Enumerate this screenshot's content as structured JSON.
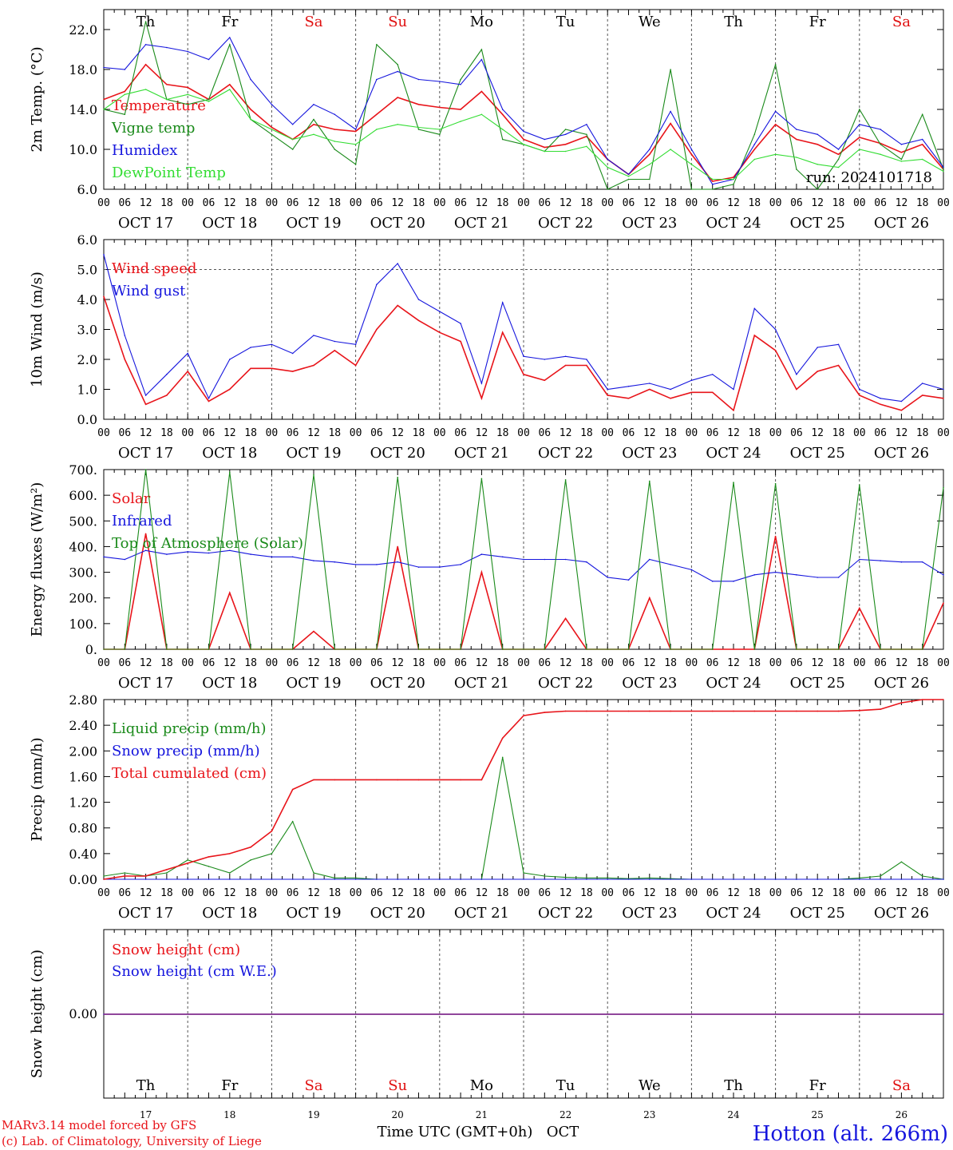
{
  "station_title": "Hotton (alt. 266m)",
  "credits": [
    "MARv3.14 model forced by GFS",
    "(c) Lab. of Climatology, University of Liege"
  ],
  "run_label": "run: 2024101718",
  "x_axis_title": "Time UTC (GMT+0h)",
  "x_axis_month": "OCT",
  "hour_labels": [
    "00",
    "06",
    "12",
    "18"
  ],
  "dates": [
    "OCT 17",
    "OCT 18",
    "OCT 19",
    "OCT 20",
    "OCT 21",
    "OCT 22",
    "OCT 23",
    "OCT 24",
    "OCT 25",
    "OCT 26"
  ],
  "day_numbers": [
    "17",
    "18",
    "19",
    "20",
    "21",
    "22",
    "23",
    "24",
    "25",
    "26"
  ],
  "weekdays": [
    "Th",
    "Fr",
    "Sa",
    "Su",
    "Mo",
    "Tu",
    "We",
    "Th",
    "Fr",
    "Sa"
  ],
  "weekday_colors": [
    "#000000",
    "#000000",
    "#e01010",
    "#e01010",
    "#000000",
    "#000000",
    "#000000",
    "#000000",
    "#000000",
    "#e01010"
  ],
  "colors": {
    "red": "#e8141a",
    "green": "#1a8a1a",
    "blue": "#1515dd",
    "lightgreen": "#33dd33",
    "purple": "#7030a0"
  },
  "chart_data": [
    {
      "type": "line",
      "ylabel": "2m Temp. (°C)",
      "ylim": [
        6.0,
        24.0
      ],
      "yticks": [
        "6.0",
        "10.0",
        "14.0",
        "18.0",
        "22.0"
      ],
      "x_hours": [
        0,
        6,
        12,
        18,
        24,
        30,
        36,
        42,
        48,
        54,
        60,
        66,
        72,
        78,
        84,
        90,
        96,
        102,
        108,
        114,
        120,
        126,
        132,
        138,
        144,
        150,
        156,
        162,
        168,
        174,
        180,
        186,
        192,
        198,
        204,
        210,
        216,
        222,
        228,
        234,
        240
      ],
      "series": [
        {
          "name": "Temperature",
          "color": "red",
          "values": [
            15.0,
            15.8,
            18.5,
            16.5,
            16.2,
            15.0,
            16.5,
            14.0,
            12.2,
            11.0,
            12.5,
            12.0,
            11.8,
            13.5,
            15.2,
            14.5,
            14.2,
            14.0,
            15.8,
            13.5,
            11.0,
            10.2,
            10.5,
            11.3,
            9.0,
            7.5,
            9.5,
            12.6,
            9.5,
            6.8,
            7.2,
            10.0,
            12.5,
            11.0,
            10.5,
            9.5,
            11.2,
            10.6,
            9.7,
            10.5,
            8.0
          ]
        },
        {
          "name": "Vigne temp",
          "color": "green",
          "values": [
            14.0,
            13.5,
            22.8,
            15.0,
            14.5,
            15.0,
            20.5,
            13.0,
            11.5,
            10.0,
            13.0,
            10.0,
            8.5,
            20.5,
            18.5,
            12.0,
            11.5,
            17.0,
            20.0,
            11.0,
            10.5,
            9.8,
            12.0,
            11.5,
            5.0,
            7.0,
            7.0,
            18.0,
            5.0,
            6.0,
            6.5,
            11.5,
            18.5,
            8.0,
            4.5,
            9.0,
            14.0,
            10.5,
            9.0,
            13.5,
            8.0
          ]
        },
        {
          "name": "Humidex",
          "color": "blue",
          "values": [
            18.2,
            18.0,
            20.5,
            20.2,
            19.8,
            19.0,
            21.2,
            17.0,
            14.5,
            12.5,
            14.5,
            13.5,
            12.0,
            17.0,
            17.8,
            17.0,
            16.8,
            16.5,
            19.0,
            14.0,
            11.8,
            11.0,
            11.5,
            12.5,
            9.0,
            7.5,
            10.0,
            13.8,
            10.0,
            6.5,
            7.0,
            10.5,
            13.8,
            12.0,
            11.5,
            10.0,
            12.5,
            12.0,
            10.5,
            11.0,
            8.2
          ]
        },
        {
          "name": "DewPoint Temp",
          "color": "lightgreen",
          "values": [
            14.0,
            15.5,
            16.0,
            15.0,
            15.5,
            14.8,
            16.0,
            13.0,
            12.0,
            11.0,
            11.5,
            10.8,
            10.5,
            12.0,
            12.5,
            12.2,
            12.0,
            12.8,
            13.5,
            12.0,
            10.5,
            9.8,
            9.8,
            10.3,
            8.2,
            7.3,
            8.5,
            10.0,
            8.5,
            7.0,
            7.0,
            9.0,
            9.5,
            9.2,
            8.5,
            8.2,
            10.0,
            9.5,
            8.8,
            9.0,
            7.8
          ]
        }
      ]
    },
    {
      "type": "line",
      "ylabel": "10m Wind (m/s)",
      "ylim": [
        0.0,
        6.0
      ],
      "yticks": [
        "0.0",
        "1.0",
        "2.0",
        "3.0",
        "4.0",
        "5.0",
        "6.0"
      ],
      "x_hours": [
        0,
        6,
        12,
        18,
        24,
        30,
        36,
        42,
        48,
        54,
        60,
        66,
        72,
        78,
        84,
        90,
        96,
        102,
        108,
        114,
        120,
        126,
        132,
        138,
        144,
        150,
        156,
        162,
        168,
        174,
        180,
        186,
        192,
        198,
        204,
        210,
        216,
        222,
        228,
        234,
        240
      ],
      "series": [
        {
          "name": "Wind speed",
          "color": "red",
          "values": [
            4.1,
            2.0,
            0.5,
            0.8,
            1.6,
            0.6,
            1.0,
            1.7,
            1.7,
            1.6,
            1.8,
            2.3,
            1.8,
            3.0,
            3.8,
            3.3,
            2.9,
            2.6,
            0.7,
            2.9,
            1.5,
            1.3,
            1.8,
            1.8,
            0.8,
            0.7,
            1.0,
            0.7,
            0.9,
            0.9,
            0.3,
            2.8,
            2.3,
            1.0,
            1.6,
            1.8,
            0.8,
            0.5,
            0.3,
            0.8,
            0.7
          ]
        },
        {
          "name": "Wind gust",
          "color": "blue",
          "values": [
            5.5,
            2.8,
            0.8,
            1.5,
            2.2,
            0.7,
            2.0,
            2.4,
            2.5,
            2.2,
            2.8,
            2.6,
            2.5,
            4.5,
            5.2,
            4.0,
            3.6,
            3.2,
            1.2,
            3.9,
            2.1,
            2.0,
            2.1,
            2.0,
            1.0,
            1.1,
            1.2,
            1.0,
            1.3,
            1.5,
            1.0,
            3.7,
            3.0,
            1.5,
            2.4,
            2.5,
            1.0,
            0.7,
            0.6,
            1.2,
            1.0
          ]
        }
      ]
    },
    {
      "type": "line",
      "ylabel": "Energy fluxes (W/m²)",
      "ylim": [
        0,
        700
      ],
      "yticks": [
        "0.",
        "100.",
        "200.",
        "300.",
        "400.",
        "500.",
        "600.",
        "700."
      ],
      "x_hours": [
        0,
        6,
        12,
        18,
        24,
        30,
        36,
        42,
        48,
        54,
        60,
        66,
        72,
        78,
        84,
        90,
        96,
        102,
        108,
        114,
        120,
        126,
        132,
        138,
        144,
        150,
        156,
        162,
        168,
        174,
        180,
        186,
        192,
        198,
        204,
        210,
        216,
        222,
        228,
        234,
        240
      ],
      "series": [
        {
          "name": "Solar",
          "color": "red",
          "values": [
            0,
            0,
            450,
            0,
            0,
            0,
            220,
            0,
            0,
            0,
            70,
            0,
            0,
            0,
            400,
            0,
            0,
            0,
            300,
            0,
            0,
            0,
            120,
            0,
            0,
            0,
            200,
            0,
            0,
            0,
            0,
            0,
            440,
            0,
            0,
            0,
            160,
            0,
            0,
            0,
            180
          ]
        },
        {
          "name": "Infrared",
          "color": "blue",
          "values": [
            360,
            350,
            385,
            370,
            380,
            375,
            385,
            370,
            360,
            360,
            345,
            340,
            330,
            330,
            340,
            320,
            320,
            330,
            370,
            360,
            350,
            350,
            350,
            340,
            280,
            270,
            350,
            330,
            310,
            265,
            265,
            290,
            300,
            290,
            280,
            280,
            350,
            345,
            340,
            340,
            290
          ]
        },
        {
          "name": "Top of Atmosphere (Solar)",
          "color": "green",
          "values": [
            0,
            0,
            700,
            0,
            0,
            0,
            690,
            0,
            0,
            0,
            680,
            0,
            0,
            0,
            670,
            0,
            0,
            0,
            665,
            0,
            0,
            0,
            660,
            0,
            0,
            0,
            655,
            0,
            0,
            0,
            650,
            0,
            645,
            0,
            0,
            0,
            640,
            0,
            0,
            0,
            630
          ]
        }
      ]
    },
    {
      "type": "line",
      "ylabel": "Precip (mm/h)",
      "ylim": [
        0.0,
        2.8
      ],
      "yticks": [
        "0.00",
        "0.40",
        "0.80",
        "1.20",
        "1.60",
        "2.00",
        "2.40",
        "2.80"
      ],
      "x_hours": [
        0,
        6,
        12,
        18,
        24,
        30,
        36,
        42,
        48,
        54,
        60,
        66,
        72,
        78,
        84,
        90,
        96,
        102,
        108,
        114,
        120,
        126,
        132,
        138,
        144,
        150,
        156,
        162,
        168,
        174,
        180,
        186,
        192,
        198,
        204,
        210,
        216,
        222,
        228,
        234,
        240
      ],
      "series": [
        {
          "name": "Liquid precip (mm/h)",
          "color": "green",
          "values": [
            0.05,
            0.1,
            0.05,
            0.1,
            0.3,
            0.2,
            0.1,
            0.3,
            0.4,
            0.9,
            0.1,
            0.02,
            0.02,
            0.0,
            0.0,
            0.0,
            0.0,
            0.0,
            0.0,
            1.9,
            0.1,
            0.05,
            0.03,
            0.02,
            0.02,
            0.01,
            0.02,
            0.01,
            0.0,
            0.0,
            0.0,
            0.0,
            0.0,
            0.0,
            0.0,
            0.0,
            0.02,
            0.05,
            0.27,
            0.05,
            0.0
          ]
        },
        {
          "name": "Snow precip (mm/h)",
          "color": "blue",
          "values": [
            0,
            0,
            0,
            0,
            0,
            0,
            0,
            0,
            0,
            0,
            0,
            0,
            0,
            0,
            0,
            0,
            0,
            0,
            0,
            0,
            0,
            0,
            0,
            0,
            0,
            0,
            0,
            0,
            0,
            0,
            0,
            0,
            0,
            0,
            0,
            0,
            0,
            0,
            0,
            0,
            0
          ]
        },
        {
          "name": "Total cumulated (cm)",
          "color": "red",
          "values": [
            0.0,
            0.05,
            0.05,
            0.15,
            0.25,
            0.35,
            0.4,
            0.5,
            0.75,
            1.4,
            1.55,
            1.55,
            1.55,
            1.55,
            1.55,
            1.55,
            1.55,
            1.55,
            1.55,
            2.2,
            2.55,
            2.6,
            2.62,
            2.62,
            2.62,
            2.62,
            2.62,
            2.62,
            2.62,
            2.62,
            2.62,
            2.62,
            2.62,
            2.62,
            2.62,
            2.62,
            2.63,
            2.65,
            2.75,
            2.8,
            2.8
          ]
        }
      ]
    },
    {
      "type": "line",
      "ylabel": "Snow height (cm)",
      "yticks": [
        "0.00"
      ],
      "x_hours": [
        0,
        240
      ],
      "series": [
        {
          "name": "Snow height (cm)",
          "color": "red",
          "values": [
            0,
            0
          ]
        },
        {
          "name": "Snow height (cm W.E.)",
          "color": "blue",
          "values": [
            0,
            0
          ]
        }
      ]
    }
  ]
}
